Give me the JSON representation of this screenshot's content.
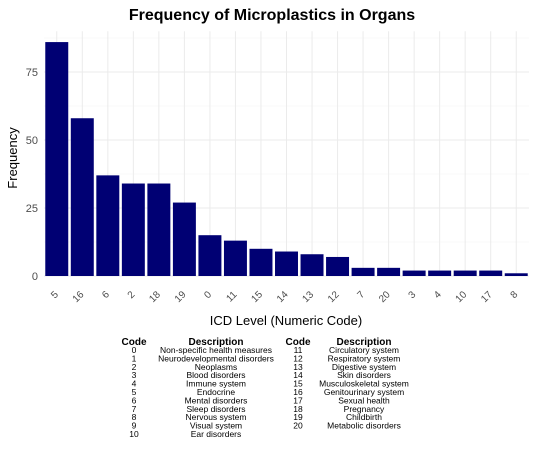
{
  "chart_data": {
    "type": "bar",
    "title": "Frequency of Microplastics in Organs",
    "xlabel": "ICD Level (Numeric Code)",
    "ylabel": "Frequency",
    "categories": [
      "5",
      "16",
      "6",
      "2",
      "18",
      "19",
      "0",
      "11",
      "15",
      "14",
      "13",
      "12",
      "7",
      "20",
      "3",
      "4",
      "10",
      "17",
      "8"
    ],
    "values": [
      86,
      58,
      37,
      34,
      34,
      27,
      15,
      13,
      10,
      9,
      8,
      7,
      3,
      3,
      2,
      2,
      2,
      2,
      1
    ],
    "ylim": [
      0,
      90
    ],
    "yticks": [
      0,
      25,
      50,
      75
    ],
    "grid": true,
    "bar_color": "#000073"
  },
  "legend_table": {
    "headers": [
      "Code",
      "Description",
      "Code",
      "Description"
    ],
    "left_rows": [
      [
        "0",
        "Non-specific health measures"
      ],
      [
        "1",
        "Neurodevelopmental disorders"
      ],
      [
        "2",
        "Neoplasms"
      ],
      [
        "3",
        "Blood disorders"
      ],
      [
        "4",
        "Immune system"
      ],
      [
        "5",
        "Endocrine"
      ],
      [
        "6",
        "Mental disorders"
      ],
      [
        "7",
        "Sleep disorders"
      ],
      [
        "8",
        "Nervous system"
      ],
      [
        "9",
        "Visual system"
      ],
      [
        "10",
        "Ear disorders"
      ]
    ],
    "right_rows": [
      [
        "11",
        "Circulatory system"
      ],
      [
        "12",
        "Respiratory system"
      ],
      [
        "13",
        "Digestive system"
      ],
      [
        "14",
        "Skin disorders"
      ],
      [
        "15",
        "Musculoskeletal system"
      ],
      [
        "16",
        "Genitourinary system"
      ],
      [
        "17",
        "Sexual health"
      ],
      [
        "18",
        "Pregnancy"
      ],
      [
        "19",
        "Childbirth"
      ],
      [
        "20",
        "Metabolic disorders"
      ]
    ]
  }
}
